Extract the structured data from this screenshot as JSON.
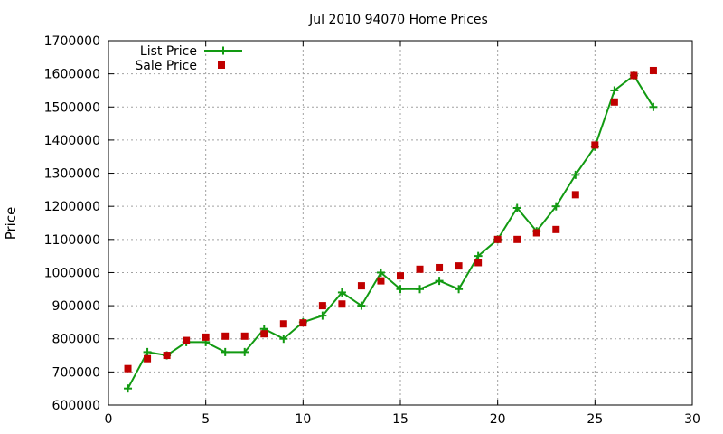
{
  "chart_data": {
    "type": "line",
    "title": "Jul 2010 94070 Home Prices",
    "xlabel": "",
    "ylabel": "Price",
    "xlim": [
      0,
      30
    ],
    "ylim": [
      600000,
      1700000
    ],
    "xticks": [
      0,
      5,
      10,
      15,
      20,
      25,
      30
    ],
    "yticks": [
      600000,
      700000,
      800000,
      900000,
      1000000,
      1100000,
      1200000,
      1300000,
      1400000,
      1500000,
      1600000,
      1700000
    ],
    "grid": true,
    "legend_position": "top-left",
    "series": [
      {
        "name": "List Price",
        "style": "line-plus",
        "color": "#129a12",
        "x": [
          1,
          2,
          3,
          4,
          5,
          6,
          7,
          8,
          9,
          10,
          11,
          12,
          13,
          14,
          15,
          16,
          17,
          18,
          19,
          20,
          21,
          22,
          23,
          24,
          25,
          26,
          27,
          28
        ],
        "values": [
          650000,
          760000,
          750000,
          790000,
          790000,
          760000,
          760000,
          830000,
          800000,
          850000,
          870000,
          940000,
          900000,
          1000000,
          950000,
          950000,
          975000,
          950000,
          1050000,
          1100000,
          1195000,
          1125000,
          1200000,
          1295000,
          1380000,
          1550000,
          1595000,
          1500000
        ]
      },
      {
        "name": "Sale Price",
        "style": "square",
        "color": "#c00000",
        "x": [
          1,
          2,
          3,
          4,
          5,
          6,
          7,
          8,
          9,
          10,
          11,
          12,
          13,
          14,
          15,
          16,
          17,
          18,
          19,
          20,
          21,
          22,
          23,
          24,
          25,
          26,
          27,
          28
        ],
        "values": [
          710000,
          740000,
          750000,
          795000,
          805000,
          808000,
          808000,
          815000,
          845000,
          848000,
          900000,
          905000,
          960000,
          975000,
          990000,
          1010000,
          1015000,
          1020000,
          1030000,
          1100000,
          1100000,
          1120000,
          1130000,
          1235000,
          1385000,
          1515000,
          1595000,
          1610000
        ]
      }
    ]
  }
}
